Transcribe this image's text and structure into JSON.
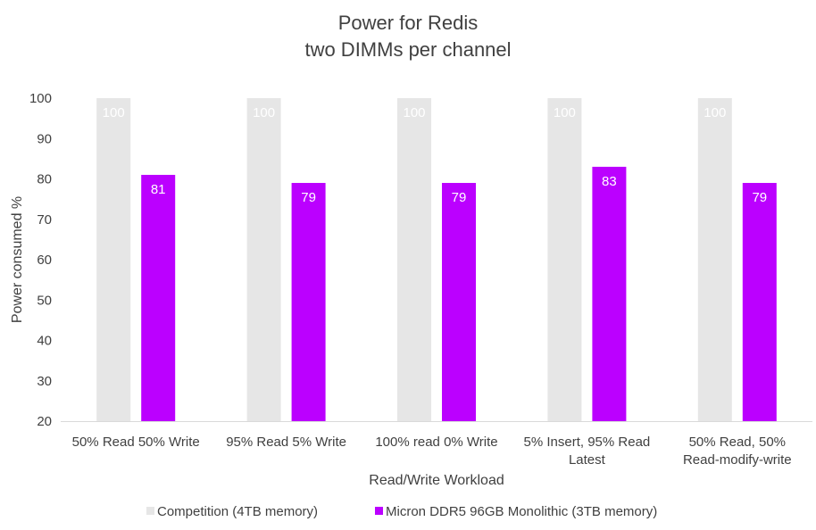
{
  "chart_data": {
    "type": "bar",
    "title": [
      "Power for Redis",
      "two DIMMs per channel"
    ],
    "xlabel": "Read/Write Workload",
    "ylabel": "Power consumed %",
    "ylim": [
      20,
      100
    ],
    "yticks": [
      20,
      30,
      40,
      50,
      60,
      70,
      80,
      90,
      100
    ],
    "categories": [
      [
        "50% Read 50% Write"
      ],
      [
        "95% Read 5% Write"
      ],
      [
        "100% read 0% Write"
      ],
      [
        "5% Insert, 95% Read",
        "Latest"
      ],
      [
        "50% Read, 50%",
        "Read-modify-write"
      ]
    ],
    "series": [
      {
        "name": "Competition (4TB memory)",
        "color": "#e6e6e6",
        "label_color": "#ffffff",
        "values": [
          100,
          100,
          100,
          100,
          100
        ]
      },
      {
        "name": "Micron DDR5 96GB Monolithic (3TB memory)",
        "color": "#bb00ff",
        "label_color": "#ffffff",
        "values": [
          81,
          79,
          79,
          83,
          79
        ]
      }
    ],
    "grid": false,
    "legend_position": "bottom"
  }
}
